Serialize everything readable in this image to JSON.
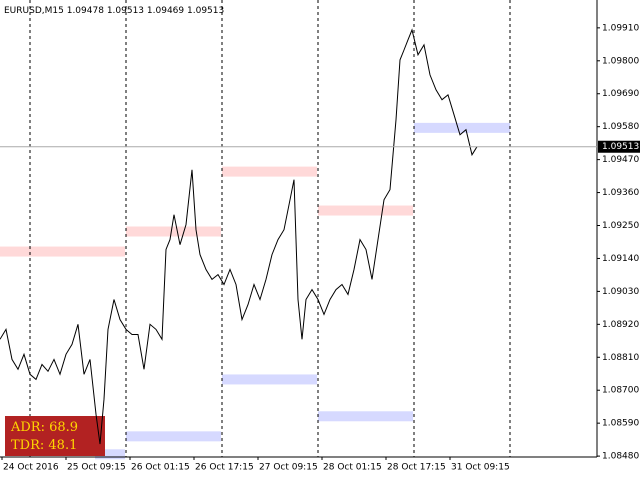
{
  "chart_data": {
    "type": "line",
    "symbol": "EURUSD,M15",
    "ohlc": [
      1.09478,
      1.09513,
      1.09469,
      1.09513
    ],
    "color": "#000000",
    "x": [
      0,
      6,
      12,
      18,
      24,
      30,
      36,
      42,
      48,
      54,
      60,
      66,
      72,
      78,
      84,
      90,
      96,
      100,
      104,
      108,
      114,
      120,
      126,
      132,
      138,
      144,
      150,
      156,
      162,
      166,
      170,
      174,
      180,
      186,
      192,
      196,
      200,
      206,
      212,
      218,
      224,
      230,
      236,
      242,
      248,
      254,
      260,
      266,
      272,
      278,
      284,
      290,
      294,
      298,
      302,
      306,
      312,
      318,
      324,
      330,
      336,
      342,
      348,
      354,
      360,
      366,
      372,
      378,
      384,
      390,
      396,
      400,
      404,
      408,
      412,
      418,
      424,
      430,
      436,
      442,
      448,
      454,
      460,
      466,
      472,
      477
    ],
    "values": [
      1.0887,
      1.08903,
      1.08803,
      1.0877,
      1.0882,
      1.08753,
      1.08736,
      1.08786,
      1.08763,
      1.08803,
      1.08753,
      1.0882,
      1.08853,
      1.0892,
      1.08753,
      1.08803,
      1.0862,
      1.0852,
      1.0867,
      1.08903,
      1.09003,
      1.08936,
      1.08903,
      1.08886,
      1.08886,
      1.0877,
      1.0892,
      1.08903,
      1.0887,
      1.0917,
      1.09203,
      1.09286,
      1.09186,
      1.09253,
      1.09436,
      1.09236,
      1.09153,
      1.09103,
      1.0907,
      1.09086,
      1.09053,
      1.09103,
      1.09053,
      1.08936,
      1.08986,
      1.09053,
      1.09003,
      1.0907,
      1.09153,
      1.09203,
      1.09236,
      1.09336,
      1.09403,
      1.09003,
      1.0887,
      1.09003,
      1.09036,
      1.09003,
      1.08953,
      1.09003,
      1.09036,
      1.09053,
      1.0902,
      1.09103,
      1.09203,
      1.0917,
      1.0907,
      1.09203,
      1.09336,
      1.0937,
      1.09603,
      1.09803,
      1.09836,
      1.0987,
      1.09903,
      1.0982,
      1.09853,
      1.09753,
      1.09703,
      1.0967,
      1.09686,
      1.0962,
      1.09553,
      1.0957,
      1.09486,
      1.09513
    ],
    "xlim": [
      0,
      597
    ],
    "xticks": [
      {
        "value": 2,
        "label": "24 Oct 2016"
      },
      {
        "value": 66,
        "label": "25 Oct 09:15"
      },
      {
        "value": 130,
        "label": "26 Oct 01:15"
      },
      {
        "value": 194,
        "label": "26 Oct 17:15"
      },
      {
        "value": 258,
        "label": "27 Oct 09:15"
      },
      {
        "value": 322,
        "label": "28 Oct 01:15"
      },
      {
        "value": 386,
        "label": "28 Oct 17:15"
      },
      {
        "value": 450,
        "label": "31 Oct 09:15"
      }
    ],
    "separators": [
      30,
      126,
      222,
      318,
      414,
      510
    ],
    "ylim": [
      1.08477,
      1.10003
    ],
    "yticks": [
      {
        "value": 1.0991,
        "label": "1.09910"
      },
      {
        "value": 1.098,
        "label": "1.09800"
      },
      {
        "value": 1.0969,
        "label": "1.09690"
      },
      {
        "value": 1.0958,
        "label": "1.09580"
      },
      {
        "value": 1.0947,
        "label": "1.09470"
      },
      {
        "value": 1.0936,
        "label": "1.09360"
      },
      {
        "value": 1.0925,
        "label": "1.09250"
      },
      {
        "value": 1.0914,
        "label": "1.09140"
      },
      {
        "value": 1.0903,
        "label": "1.09030"
      },
      {
        "value": 1.0892,
        "label": "1.08920"
      },
      {
        "value": 1.0881,
        "label": "1.08810"
      },
      {
        "value": 1.087,
        "label": "1.08700"
      },
      {
        "value": 1.0859,
        "label": "1.08590"
      },
      {
        "value": 1.0848,
        "label": "1.08480"
      }
    ],
    "last_price": 1.09513,
    "zones": [
      {
        "start": 0,
        "end": 125,
        "price": 1.09163,
        "color": "#ffd9d9"
      },
      {
        "start": 126,
        "end": 221,
        "price": 1.0923,
        "color": "#ffd9d9"
      },
      {
        "start": 222,
        "end": 317,
        "price": 1.0943,
        "color": "#ffd9d9"
      },
      {
        "start": 318,
        "end": 413,
        "price": 1.093,
        "color": "#ffd9d9"
      },
      {
        "start": 95,
        "end": 125,
        "price": 1.08486,
        "color": "#d6d9ff"
      },
      {
        "start": 126,
        "end": 221,
        "price": 1.08546,
        "color": "#d6d9ff"
      },
      {
        "start": 222,
        "end": 317,
        "price": 1.08736,
        "color": "#d6d9ff"
      },
      {
        "start": 318,
        "end": 413,
        "price": 1.08613,
        "color": "#d6d9ff"
      },
      {
        "start": 414,
        "end": 510,
        "price": 1.09576,
        "color": "#d6d9ff"
      }
    ],
    "indicators": [
      {
        "name": "ADR:",
        "value": 68.9
      },
      {
        "name": "TDR:",
        "value": 48.1
      }
    ]
  }
}
